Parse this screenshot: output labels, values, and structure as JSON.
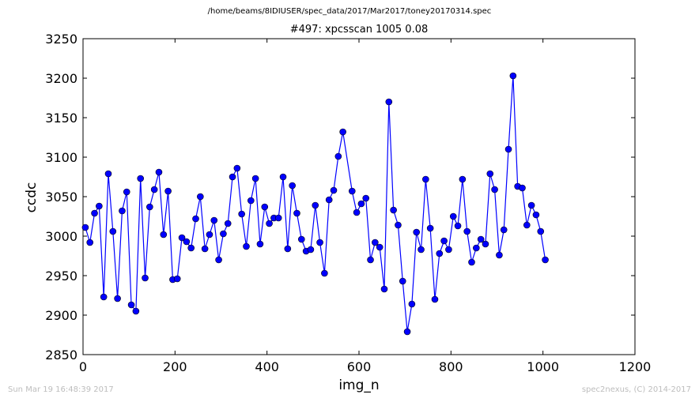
{
  "suptitle": "/home/beams/8IDIUSER/spec_data/2017/Mar2017/toney20170314.spec",
  "footer": {
    "timestamp": "Sun Mar 19 16:48:39 2017",
    "credit": "spec2nexus, (C) 2014-2017"
  },
  "colors": {
    "line": "#0000ff",
    "marker": "#0000ff",
    "marker_edge": "#000000"
  },
  "chart_data": {
    "type": "line",
    "title": "#497: xpcsscan 1005 0.08",
    "xlabel": "img_n",
    "ylabel": "ccdc",
    "xlim": [
      0,
      1200
    ],
    "ylim": [
      2850,
      3250
    ],
    "xticks": [
      0,
      200,
      400,
      600,
      800,
      1000,
      1200
    ],
    "yticks": [
      2850,
      2900,
      2950,
      3000,
      3050,
      3100,
      3150,
      3200,
      3250
    ],
    "grid": false,
    "x": [
      5,
      15,
      25,
      35,
      45,
      55,
      65,
      75,
      85,
      95,
      105,
      115,
      125,
      135,
      145,
      155,
      165,
      175,
      185,
      195,
      205,
      215,
      225,
      235,
      245,
      255,
      265,
      275,
      285,
      295,
      305,
      315,
      325,
      335,
      345,
      355,
      365,
      375,
      385,
      395,
      405,
      415,
      425,
      435,
      445,
      455,
      465,
      475,
      485,
      495,
      505,
      515,
      525,
      535,
      545,
      555,
      565,
      585,
      595,
      605,
      615,
      625,
      635,
      645,
      655,
      665,
      675,
      685,
      695,
      705,
      715,
      725,
      735,
      745,
      755,
      765,
      775,
      785,
      795,
      805,
      815,
      825,
      835,
      845,
      855,
      865,
      875,
      885,
      895,
      905,
      915,
      925,
      935,
      945,
      955,
      965,
      975,
      985,
      995,
      1005
    ],
    "y": [
      3011,
      2992,
      3029,
      3038,
      2923,
      3079,
      3006,
      2921,
      3032,
      3056,
      2913,
      2905,
      3073,
      2947,
      3037,
      3059,
      3081,
      3002,
      3057,
      2945,
      2946,
      2998,
      2993,
      2985,
      3022,
      3050,
      2984,
      3002,
      3020,
      2970,
      3003,
      3016,
      3075,
      3086,
      3028,
      2987,
      3045,
      3073,
      2990,
      3037,
      3016,
      3023,
      3023,
      3075,
      2984,
      3064,
      3029,
      2996,
      2981,
      2983,
      3039,
      2992,
      2953,
      3046,
      3058,
      3101,
      3132,
      3057,
      3030,
      3041,
      3048,
      2970,
      2992,
      2986,
      2933,
      3170,
      3033,
      3014,
      2943,
      2879,
      2914,
      3005,
      2983,
      3072,
      3010,
      2920,
      2978,
      2994,
      2983,
      3025,
      3013,
      3072,
      3006,
      2967,
      2985,
      2996,
      2990,
      3079,
      3059,
      2976,
      3008,
      3110,
      3203,
      3063,
      3061,
      3014,
      3039,
      3027,
      3006,
      2970
    ]
  }
}
